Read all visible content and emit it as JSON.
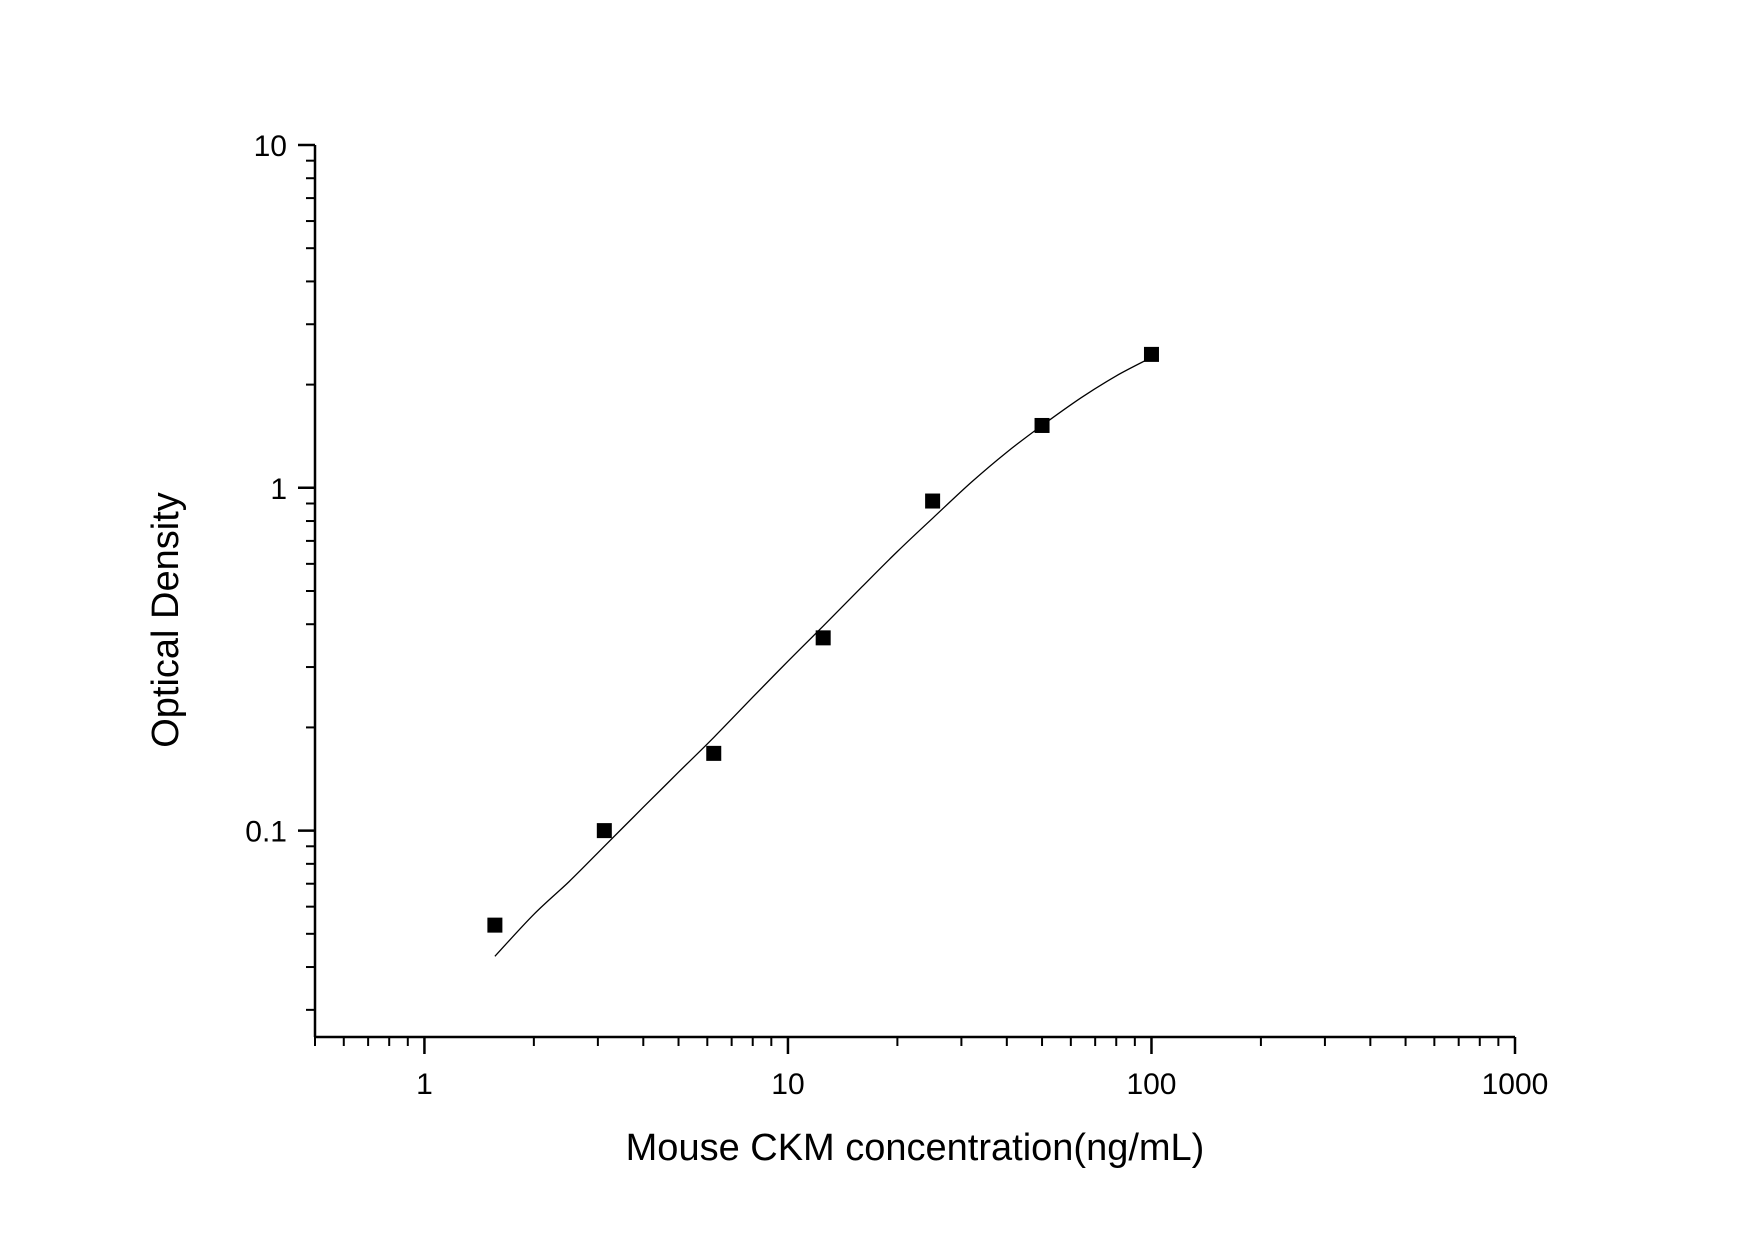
{
  "chart_data": {
    "type": "scatter",
    "title": "",
    "xlabel": "Mouse CKM concentration(ng/mL)",
    "ylabel": "Optical Density",
    "xscale": "log",
    "yscale": "log",
    "xlim": [
      0.5,
      1000
    ],
    "ylim": [
      0.025,
      10
    ],
    "x_ticks": [
      {
        "value": 1,
        "label": "1"
      },
      {
        "value": 10,
        "label": "10"
      },
      {
        "value": 100,
        "label": "100"
      },
      {
        "value": 1000,
        "label": "1000"
      }
    ],
    "y_ticks": [
      {
        "value": 0.1,
        "label": "0.1"
      },
      {
        "value": 1,
        "label": "1"
      },
      {
        "value": 10,
        "label": "10"
      }
    ],
    "grid": false,
    "legend": "none",
    "series": [
      {
        "kind": "points",
        "marker": "square",
        "color": "#000000",
        "x": [
          1.5625,
          3.125,
          6.25,
          12.5,
          25,
          50,
          100
        ],
        "y": [
          0.053,
          0.1,
          0.168,
          0.365,
          0.915,
          1.52,
          2.45
        ]
      },
      {
        "kind": "fitted-curve",
        "color": "#000000",
        "x": [
          1.5625,
          2,
          2.5,
          3.125,
          4,
          5,
          6.25,
          8,
          10,
          12.5,
          16,
          20,
          25,
          32,
          40,
          50,
          64,
          80,
          100
        ],
        "y": [
          0.043,
          0.057,
          0.071,
          0.09,
          0.117,
          0.148,
          0.187,
          0.245,
          0.312,
          0.395,
          0.515,
          0.652,
          0.815,
          1.04,
          1.27,
          1.52,
          1.83,
          2.12,
          2.4
        ]
      }
    ]
  }
}
